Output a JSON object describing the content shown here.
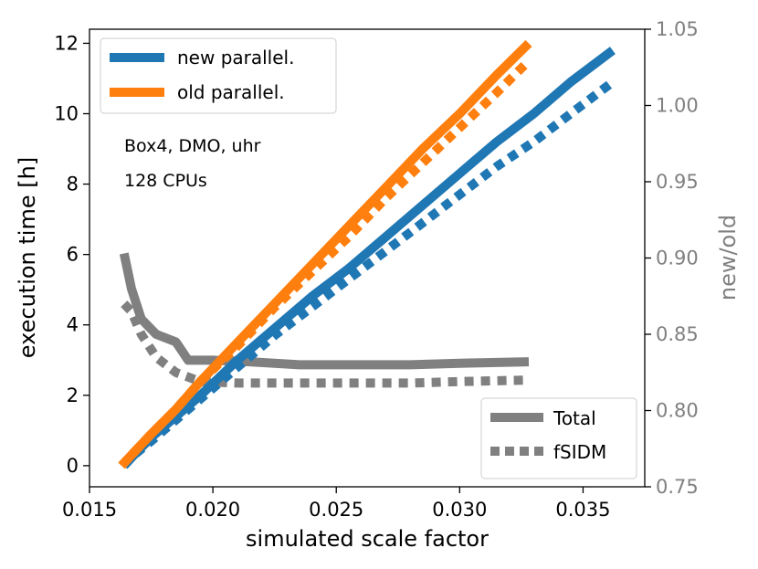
{
  "chart_data": {
    "type": "line",
    "title": "",
    "xlabel": "simulated scale factor",
    "ylabel": "execution time [h]",
    "ylabel_right": "new/old",
    "xlim": [
      0.015,
      0.0375
    ],
    "ylim": [
      -0.6,
      12.4
    ],
    "ylim_right": [
      0.75,
      1.05
    ],
    "xticks": [
      "0.015",
      "0.020",
      "0.025",
      "0.030",
      "0.035"
    ],
    "xtick_values": [
      0.015,
      0.02,
      0.025,
      0.03,
      0.035
    ],
    "yticks": [
      "0",
      "2",
      "4",
      "6",
      "8",
      "10",
      "12"
    ],
    "ytick_values": [
      0,
      2,
      4,
      6,
      8,
      10,
      12
    ],
    "yticks_right": [
      "0.75",
      "0.80",
      "0.85",
      "0.90",
      "0.95",
      "1.00",
      "1.05"
    ],
    "ytick_values_right": [
      0.75,
      0.8,
      0.85,
      0.9,
      0.95,
      1.0,
      1.05
    ],
    "annotations": [
      "Box4, DMO, uhr",
      "128 CPUs"
    ],
    "legend_top_left": [
      {
        "label": "new parallel.",
        "color": "#1f77b4"
      },
      {
        "label": "old parallel.",
        "color": "#ff7f0e"
      }
    ],
    "legend_bottom_right": [
      {
        "label": "Total",
        "color": "#808080",
        "style": "solid"
      },
      {
        "label": "fSIDM",
        "color": "#808080",
        "style": "dotted"
      }
    ],
    "series": [
      {
        "name": "new parallel. Total",
        "axis": "left",
        "color": "#1f77b4",
        "style": "solid",
        "x": [
          0.0164,
          0.0168,
          0.0175,
          0.0185,
          0.0195,
          0.021,
          0.0225,
          0.024,
          0.0255,
          0.027,
          0.0285,
          0.03,
          0.0315,
          0.033,
          0.0345,
          0.0362
        ],
        "y": [
          0.0,
          0.3,
          0.8,
          1.4,
          2.0,
          3.0,
          3.9,
          4.8,
          5.6,
          6.5,
          7.4,
          8.3,
          9.2,
          10.0,
          10.9,
          11.8
        ]
      },
      {
        "name": "new parallel. fSIDM",
        "axis": "left",
        "color": "#1f77b4",
        "style": "dotted",
        "x": [
          0.0164,
          0.0168,
          0.0175,
          0.0185,
          0.0195,
          0.021,
          0.0225,
          0.024,
          0.0255,
          0.027,
          0.0285,
          0.03,
          0.0315,
          0.033,
          0.0345,
          0.0362
        ],
        "y": [
          0.0,
          0.3,
          0.7,
          1.3,
          1.9,
          2.8,
          3.7,
          4.5,
          5.3,
          6.1,
          6.9,
          7.7,
          8.5,
          9.2,
          10.0,
          10.9
        ]
      },
      {
        "name": "old parallel. Total",
        "axis": "left",
        "color": "#ff7f0e",
        "style": "solid",
        "x": [
          0.0163,
          0.0167,
          0.0175,
          0.0185,
          0.0195,
          0.021,
          0.0225,
          0.024,
          0.0255,
          0.027,
          0.0285,
          0.03,
          0.0315,
          0.0328
        ],
        "y": [
          0.0,
          0.3,
          0.9,
          1.6,
          2.4,
          3.5,
          4.6,
          5.7,
          6.8,
          7.9,
          9.0,
          10.0,
          11.1,
          12.0
        ]
      },
      {
        "name": "old parallel. fSIDM",
        "axis": "left",
        "color": "#ff7f0e",
        "style": "dotted",
        "x": [
          0.0163,
          0.0167,
          0.0175,
          0.0185,
          0.0195,
          0.021,
          0.0225,
          0.024,
          0.0255,
          0.027,
          0.0285,
          0.03,
          0.0315,
          0.0328
        ],
        "y": [
          0.0,
          0.3,
          0.9,
          1.6,
          2.4,
          3.4,
          4.5,
          5.5,
          6.5,
          7.6,
          8.6,
          9.6,
          10.6,
          11.5
        ]
      },
      {
        "name": "Total",
        "axis": "right",
        "color": "#808080",
        "style": "solid",
        "x": [
          0.0164,
          0.0167,
          0.0171,
          0.0177,
          0.0185,
          0.019,
          0.02,
          0.0215,
          0.0235,
          0.026,
          0.028,
          0.03,
          0.0328
        ],
        "y": [
          0.903,
          0.88,
          0.86,
          0.85,
          0.845,
          0.833,
          0.833,
          0.832,
          0.83,
          0.83,
          0.83,
          0.831,
          0.832
        ]
      },
      {
        "name": "fSIDM",
        "axis": "right",
        "color": "#808080",
        "style": "dotted",
        "x": [
          0.0164,
          0.0167,
          0.0171,
          0.0177,
          0.0185,
          0.0195,
          0.021,
          0.023,
          0.026,
          0.028,
          0.03,
          0.0328
        ],
        "y": [
          0.87,
          0.865,
          0.85,
          0.835,
          0.825,
          0.819,
          0.818,
          0.818,
          0.818,
          0.818,
          0.819,
          0.82
        ]
      }
    ]
  }
}
